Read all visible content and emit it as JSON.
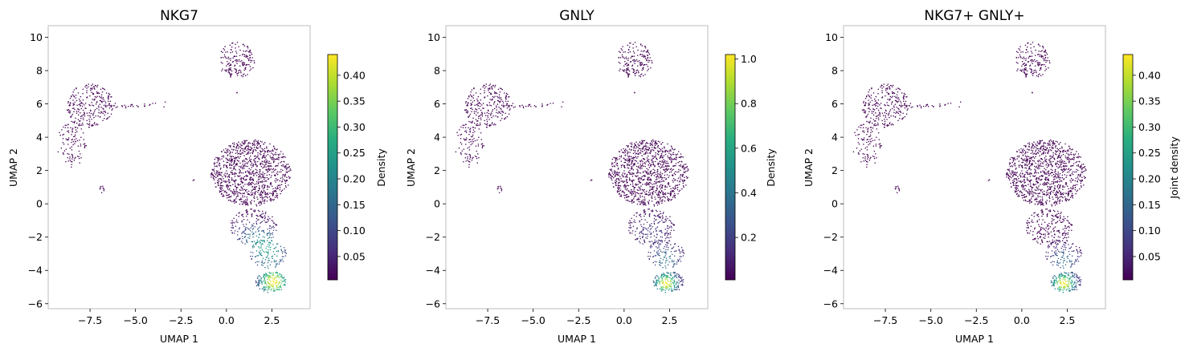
{
  "colormap": {
    "name": "viridis",
    "stops": [
      "#440154",
      "#472d7b",
      "#3b528b",
      "#2c728e",
      "#21918c",
      "#28ae80",
      "#5ec962",
      "#addc30",
      "#fde725"
    ]
  },
  "chart_data": [
    {
      "type": "scatter",
      "title": "NKG7",
      "xlabel": "UMAP 1",
      "ylabel": "UMAP 2",
      "xlim": [
        -9.8,
        4.6
      ],
      "ylim": [
        -6.3,
        10.7
      ],
      "xticks": [
        -7.5,
        -5.0,
        -2.5,
        0.0,
        2.5
      ],
      "xtick_labels": [
        "−7.5",
        "−5.0",
        "−2.5",
        "0.0",
        "2.5"
      ],
      "yticks": [
        -6,
        -4,
        -2,
        0,
        2,
        4,
        6,
        8,
        10
      ],
      "ytick_labels": [
        "−6",
        "−4",
        "−2",
        "0",
        "2",
        "4",
        "6",
        "8",
        "10"
      ],
      "colorbar": {
        "label": "Density",
        "range": [
          0.005,
          0.44
        ],
        "ticks": [
          0.05,
          0.1,
          0.15,
          0.2,
          0.25,
          0.3,
          0.35,
          0.4
        ],
        "tick_labels": [
          "0.05",
          "0.10",
          "0.15",
          "0.20",
          "0.25",
          "0.30",
          "0.35",
          "0.40"
        ]
      },
      "hotspots": [
        {
          "x": 2.6,
          "y": -4.7,
          "peak": 0.44,
          "sx": 0.55,
          "sy": 0.55
        },
        {
          "x": 2.3,
          "y": -2.8,
          "peak": 0.24,
          "sx": 0.7,
          "sy": 0.7
        },
        {
          "x": 1.4,
          "y": -1.9,
          "peak": 0.13,
          "sx": 0.7,
          "sy": 0.6
        }
      ],
      "seed": 11
    },
    {
      "type": "scatter",
      "title": "GNLY",
      "xlabel": "UMAP 1",
      "ylabel": "UMAP 2",
      "xlim": [
        -9.8,
        4.6
      ],
      "ylim": [
        -6.3,
        10.7
      ],
      "xticks": [
        -7.5,
        -5.0,
        -2.5,
        0.0,
        2.5
      ],
      "xtick_labels": [
        "−7.5",
        "−5.0",
        "−2.5",
        "0.0",
        "2.5"
      ],
      "yticks": [
        -6,
        -4,
        -2,
        0,
        2,
        4,
        6,
        8,
        10
      ],
      "ytick_labels": [
        "−6",
        "−4",
        "−2",
        "0",
        "2",
        "4",
        "6",
        "8",
        "10"
      ],
      "colorbar": {
        "label": "Density",
        "range": [
          0.01,
          1.02
        ],
        "ticks": [
          0.2,
          0.4,
          0.6,
          0.8,
          1.0
        ],
        "tick_labels": [
          "0.2",
          "0.4",
          "0.6",
          "0.8",
          "1.0"
        ]
      },
      "hotspots": [
        {
          "x": 2.3,
          "y": -4.8,
          "peak": 1.0,
          "sx": 0.45,
          "sy": 0.4
        },
        {
          "x": 2.3,
          "y": -3.4,
          "peak": 0.4,
          "sx": 0.6,
          "sy": 0.6
        },
        {
          "x": 1.5,
          "y": -1.6,
          "peak": 0.18,
          "sx": 0.8,
          "sy": 0.7
        }
      ],
      "seed": 23
    },
    {
      "type": "scatter",
      "title": "NKG7+ GNLY+",
      "xlabel": "UMAP 1",
      "ylabel": "UMAP 2",
      "xlim": [
        -9.8,
        4.6
      ],
      "ylim": [
        -6.3,
        10.7
      ],
      "xticks": [
        -7.5,
        -5.0,
        -2.5,
        0.0,
        2.5
      ],
      "xtick_labels": [
        "−7.5",
        "−5.0",
        "−2.5",
        "0.0",
        "2.5"
      ],
      "yticks": [
        -6,
        -4,
        -2,
        0,
        2,
        4,
        6,
        8,
        10
      ],
      "ytick_labels": [
        "−6",
        "−4",
        "−2",
        "0",
        "2",
        "4",
        "6",
        "8",
        "10"
      ],
      "colorbar": {
        "label": "Joint density",
        "range": [
          0.005,
          0.44
        ],
        "ticks": [
          0.05,
          0.1,
          0.15,
          0.2,
          0.25,
          0.3,
          0.35,
          0.4
        ],
        "tick_labels": [
          "0.05",
          "0.10",
          "0.15",
          "0.20",
          "0.25",
          "0.30",
          "0.35",
          "0.40"
        ]
      },
      "hotspots": [
        {
          "x": 2.3,
          "y": -4.8,
          "peak": 0.44,
          "sx": 0.45,
          "sy": 0.4
        },
        {
          "x": 2.3,
          "y": -3.4,
          "peak": 0.16,
          "sx": 0.6,
          "sy": 0.6
        }
      ],
      "seed": 37
    }
  ],
  "clusters": [
    {
      "shape": "ellipse",
      "cx": 0.55,
      "cy": 8.6,
      "rx": 1.0,
      "ry": 1.1,
      "n": 170
    },
    {
      "shape": "ellipse",
      "cx": -7.5,
      "cy": 5.9,
      "rx": 1.3,
      "ry": 1.3,
      "n": 260
    },
    {
      "shape": "ellipse",
      "cx": -8.5,
      "cy": 3.6,
      "rx": 0.8,
      "ry": 1.4,
      "n": 110
    },
    {
      "shape": "line",
      "x0": -6.3,
      "y0": 5.85,
      "x1": -3.2,
      "y1": 6.0,
      "spread": 0.08,
      "n": 28
    },
    {
      "shape": "ellipse",
      "cx": -6.85,
      "cy": 0.85,
      "rx": 0.12,
      "ry": 0.25,
      "n": 10
    },
    {
      "shape": "ellipse",
      "cx": 1.35,
      "cy": 1.85,
      "rx": 2.2,
      "ry": 2.0,
      "n": 1050
    },
    {
      "shape": "ellipse",
      "cx": 1.5,
      "cy": -1.4,
      "rx": 1.3,
      "ry": 1.1,
      "n": 220
    },
    {
      "shape": "ellipse",
      "cx": 2.3,
      "cy": -3.0,
      "rx": 1.0,
      "ry": 0.9,
      "n": 130
    },
    {
      "shape": "ellipse",
      "cx": 2.45,
      "cy": -4.7,
      "rx": 0.85,
      "ry": 0.65,
      "n": 190
    },
    {
      "shape": "ellipse",
      "cx": -1.8,
      "cy": 1.4,
      "rx": 0.05,
      "ry": 0.05,
      "n": 2
    },
    {
      "shape": "ellipse",
      "cx": 0.6,
      "cy": 6.7,
      "rx": 0.05,
      "ry": 0.05,
      "n": 2
    }
  ]
}
